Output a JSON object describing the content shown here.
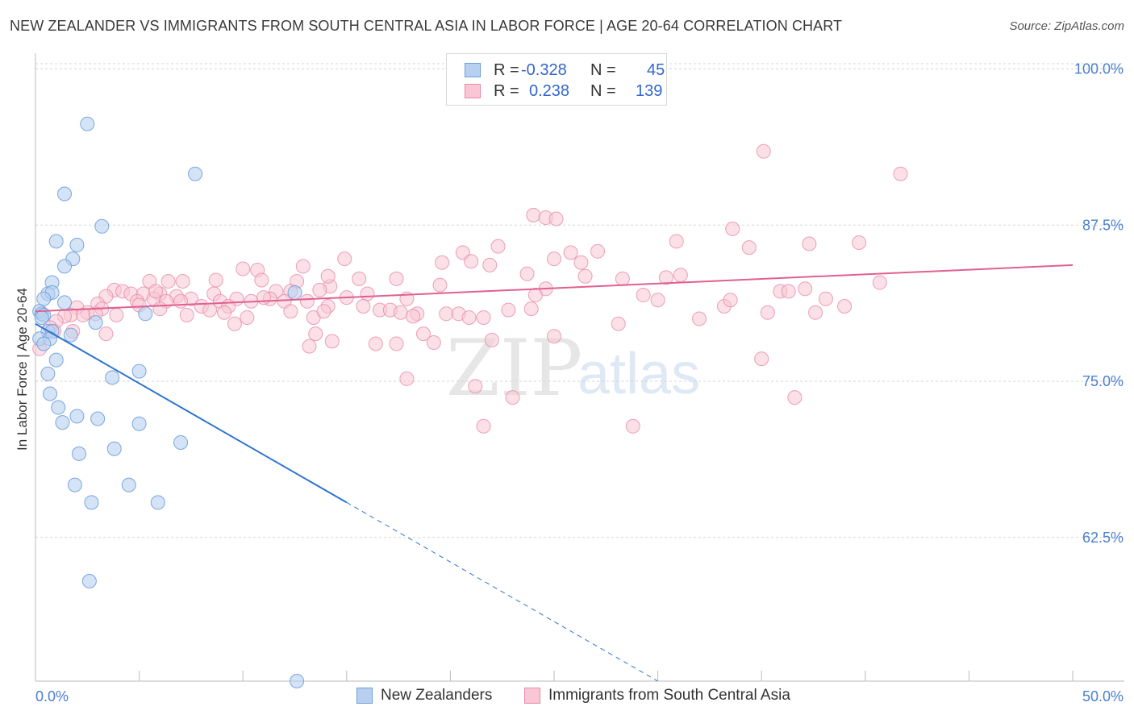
{
  "header": {
    "title": "NEW ZEALANDER VS IMMIGRANTS FROM SOUTH CENTRAL ASIA IN LABOR FORCE | AGE 20-64 CORRELATION CHART",
    "source": "Source: ZipAtlas.com"
  },
  "watermark": {
    "zip": "ZIP",
    "atlas": "atlas"
  },
  "legend": {
    "rows": [
      {
        "r_label": "R =",
        "r_value": "-0.328",
        "n_label": "N =",
        "n_value": "45"
      },
      {
        "r_label": "R =",
        "r_value": "0.238",
        "n_label": "N =",
        "n_value": "139"
      }
    ]
  },
  "bottom_legend": {
    "items": [
      {
        "label": "New Zealanders"
      },
      {
        "label": "Immigrants from South Central Asia"
      }
    ]
  },
  "colors": {
    "blue_fill": "#b8d0f0",
    "blue_stroke": "#6f9fdc",
    "blue_line": "#2f74d0",
    "pink_fill": "#f8c6d4",
    "pink_stroke": "#e98aa8",
    "pink_line": "#e06090",
    "tick_text": "#4a7fd0",
    "grid": "#d5d5d5"
  },
  "chart_data": {
    "type": "scatter",
    "ylabel": "In Labor Force | Age 20-64",
    "xlim": [
      0,
      50
    ],
    "ylim": [
      51,
      101
    ],
    "x_ticks": [
      {
        "value": 0,
        "label": "0.0%"
      },
      {
        "value": 50,
        "label": "50.0%"
      }
    ],
    "y_ticks": [
      {
        "value": 100,
        "label": "100.0%"
      },
      {
        "value": 87.5,
        "label": "87.5%"
      },
      {
        "value": 75,
        "label": "75.0%"
      },
      {
        "value": 62.5,
        "label": "62.5%"
      }
    ],
    "grid": "horizontal dashed",
    "series": [
      {
        "name": "New Zealanders",
        "color": "#6f9fdc",
        "trend": {
          "x_start": 0,
          "y_start": 79.6,
          "x_solid_end": 15,
          "y_solid_end": 65.3,
          "x_dash_end": 30,
          "y_dash_end": 51
        },
        "points": [
          [
            2.5,
            95.6
          ],
          [
            7.7,
            91.6
          ],
          [
            1.4,
            90.0
          ],
          [
            3.2,
            87.4
          ],
          [
            1.0,
            86.2
          ],
          [
            2.0,
            85.9
          ],
          [
            1.8,
            84.8
          ],
          [
            1.4,
            84.2
          ],
          [
            0.8,
            82.9
          ],
          [
            0.6,
            82.0
          ],
          [
            0.8,
            82.1
          ],
          [
            12.5,
            82.1
          ],
          [
            0.4,
            81.6
          ],
          [
            1.4,
            81.3
          ],
          [
            0.2,
            80.6
          ],
          [
            0.3,
            80.4
          ],
          [
            5.3,
            80.4
          ],
          [
            0.4,
            80.3
          ],
          [
            2.9,
            79.7
          ],
          [
            0.6,
            79.0
          ],
          [
            0.8,
            79.0
          ],
          [
            1.7,
            78.7
          ],
          [
            0.2,
            78.4
          ],
          [
            0.7,
            78.4
          ],
          [
            0.4,
            78.0
          ],
          [
            1.0,
            76.7
          ],
          [
            0.6,
            75.6
          ],
          [
            3.7,
            75.3
          ],
          [
            5.0,
            75.8
          ],
          [
            0.7,
            74.0
          ],
          [
            1.1,
            72.9
          ],
          [
            2.0,
            72.2
          ],
          [
            3.0,
            72.0
          ],
          [
            1.3,
            71.7
          ],
          [
            5.0,
            71.6
          ],
          [
            7.0,
            70.1
          ],
          [
            3.8,
            69.6
          ],
          [
            2.1,
            69.2
          ],
          [
            1.9,
            66.7
          ],
          [
            4.5,
            66.7
          ],
          [
            2.7,
            65.3
          ],
          [
            5.9,
            65.3
          ],
          [
            2.6,
            59.0
          ],
          [
            12.6,
            51.0
          ],
          [
            0.3,
            80.1
          ]
        ]
      },
      {
        "name": "Immigrants from South Central Asia",
        "color": "#e98aa8",
        "trend": {
          "x_start": 0,
          "y_start": 80.6,
          "x_end": 50,
          "y_end": 84.3
        },
        "points": [
          [
            29.4,
            99.9
          ],
          [
            35.1,
            93.4
          ],
          [
            41.7,
            91.6
          ],
          [
            24.0,
            88.3
          ],
          [
            24.6,
            88.1
          ],
          [
            25.1,
            88.0
          ],
          [
            33.6,
            87.2
          ],
          [
            30.9,
            86.2
          ],
          [
            37.3,
            86.0
          ],
          [
            22.3,
            85.8
          ],
          [
            34.4,
            85.7
          ],
          [
            20.6,
            85.3
          ],
          [
            25.8,
            85.3
          ],
          [
            14.9,
            84.8
          ],
          [
            25.0,
            84.8
          ],
          [
            21.0,
            84.6
          ],
          [
            19.6,
            84.5
          ],
          [
            12.9,
            84.2
          ],
          [
            21.9,
            84.3
          ],
          [
            10.0,
            84.0
          ],
          [
            10.7,
            83.9
          ],
          [
            23.7,
            83.6
          ],
          [
            26.5,
            83.4
          ],
          [
            15.6,
            83.2
          ],
          [
            30.4,
            83.3
          ],
          [
            17.4,
            83.2
          ],
          [
            28.3,
            83.2
          ],
          [
            10.9,
            83.1
          ],
          [
            5.5,
            83.0
          ],
          [
            7.1,
            83.0
          ],
          [
            12.6,
            83.0
          ],
          [
            19.5,
            82.7
          ],
          [
            14.2,
            82.6
          ],
          [
            24.6,
            82.4
          ],
          [
            13.7,
            82.3
          ],
          [
            3.8,
            82.3
          ],
          [
            4.2,
            82.2
          ],
          [
            11.6,
            82.2
          ],
          [
            12.3,
            82.2
          ],
          [
            35.9,
            82.2
          ],
          [
            37.1,
            82.4
          ],
          [
            4.6,
            82.0
          ],
          [
            5.2,
            82.0
          ],
          [
            6.0,
            82.0
          ],
          [
            8.6,
            82.0
          ],
          [
            16.0,
            82.0
          ],
          [
            24.1,
            81.9
          ],
          [
            29.3,
            81.9
          ],
          [
            3.4,
            81.8
          ],
          [
            6.8,
            81.8
          ],
          [
            5.7,
            81.6
          ],
          [
            7.5,
            81.6
          ],
          [
            9.7,
            81.6
          ],
          [
            11.3,
            81.6
          ],
          [
            17.9,
            81.6
          ],
          [
            38.1,
            81.6
          ],
          [
            4.9,
            81.4
          ],
          [
            6.3,
            81.4
          ],
          [
            7.0,
            81.4
          ],
          [
            8.9,
            81.4
          ],
          [
            10.4,
            81.4
          ],
          [
            12.0,
            81.4
          ],
          [
            13.1,
            81.4
          ],
          [
            3.0,
            81.2
          ],
          [
            5.0,
            81.1
          ],
          [
            8.0,
            81.0
          ],
          [
            9.3,
            81.0
          ],
          [
            14.1,
            81.0
          ],
          [
            15.8,
            81.0
          ],
          [
            33.2,
            81.0
          ],
          [
            39.0,
            81.0
          ],
          [
            2.0,
            80.9
          ],
          [
            3.2,
            80.8
          ],
          [
            6.0,
            80.8
          ],
          [
            8.4,
            80.7
          ],
          [
            16.6,
            80.7
          ],
          [
            17.1,
            80.7
          ],
          [
            22.8,
            80.7
          ],
          [
            12.3,
            80.6
          ],
          [
            2.5,
            80.5
          ],
          [
            9.1,
            80.5
          ],
          [
            17.6,
            80.5
          ],
          [
            18.4,
            80.4
          ],
          [
            19.8,
            80.4
          ],
          [
            20.4,
            80.4
          ],
          [
            1.7,
            80.3
          ],
          [
            2.3,
            80.3
          ],
          [
            7.3,
            80.3
          ],
          [
            35.3,
            80.5
          ],
          [
            37.6,
            80.5
          ],
          [
            10.2,
            80.1
          ],
          [
            13.4,
            80.1
          ],
          [
            21.6,
            80.1
          ],
          [
            32.0,
            80.0
          ],
          [
            3.9,
            80.3
          ],
          [
            1.4,
            80.2
          ],
          [
            2.9,
            80.4
          ],
          [
            1.0,
            79.8
          ],
          [
            28.1,
            79.6
          ],
          [
            9.6,
            79.6
          ],
          [
            0.7,
            79.3
          ],
          [
            0.9,
            79.0
          ],
          [
            1.8,
            79.0
          ],
          [
            3.4,
            78.8
          ],
          [
            13.5,
            78.8
          ],
          [
            18.7,
            78.8
          ],
          [
            25.0,
            78.6
          ],
          [
            22.0,
            78.3
          ],
          [
            14.3,
            78.2
          ],
          [
            16.4,
            78.0
          ],
          [
            17.4,
            78.0
          ],
          [
            19.2,
            78.1
          ],
          [
            13.2,
            77.8
          ],
          [
            35.0,
            76.8
          ],
          [
            17.9,
            75.2
          ],
          [
            21.2,
            74.6
          ],
          [
            36.6,
            73.7
          ],
          [
            23.0,
            73.7
          ],
          [
            21.6,
            71.4
          ],
          [
            28.8,
            71.4
          ],
          [
            0.2,
            77.6
          ],
          [
            40.7,
            82.9
          ],
          [
            31.1,
            83.5
          ],
          [
            26.3,
            84.5
          ],
          [
            27.1,
            85.4
          ],
          [
            39.7,
            86.1
          ],
          [
            14.1,
            83.4
          ],
          [
            8.7,
            83.1
          ],
          [
            6.4,
            83.0
          ],
          [
            5.8,
            82.2
          ],
          [
            11.0,
            81.7
          ],
          [
            15.0,
            81.7
          ],
          [
            13.9,
            80.6
          ],
          [
            18.2,
            80.2
          ],
          [
            20.9,
            80.1
          ],
          [
            23.9,
            80.8
          ],
          [
            33.5,
            81.5
          ],
          [
            36.3,
            82.2
          ],
          [
            30.0,
            81.5
          ]
        ]
      }
    ]
  }
}
